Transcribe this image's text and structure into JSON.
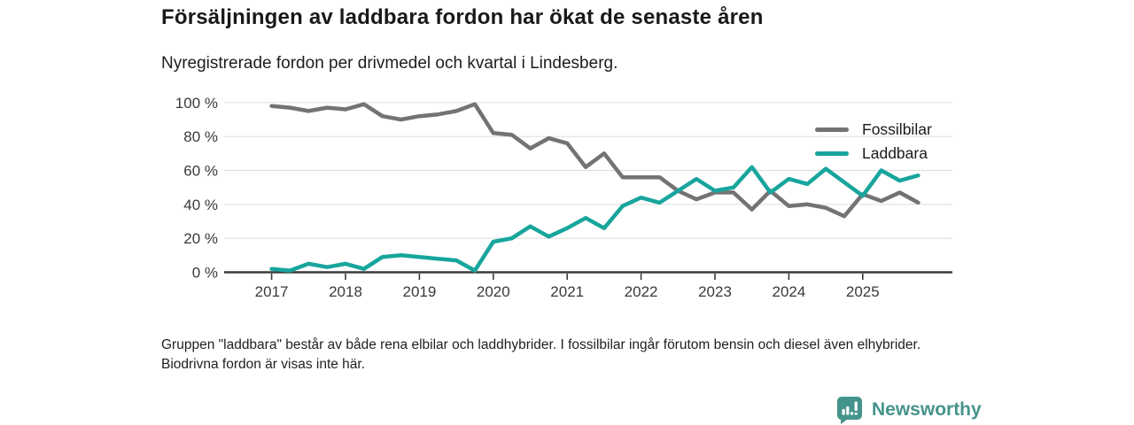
{
  "header": {
    "title": "Försäljningen av laddbara fordon har ökat de senaste åren",
    "subtitle": "Nyregistrerade fordon per drivmedel och kvartal i Lindesberg."
  },
  "chart_data": {
    "type": "line",
    "categories": [
      "2017 Q1",
      "2017 Q2",
      "2017 Q3",
      "2017 Q4",
      "2018 Q1",
      "2018 Q2",
      "2018 Q3",
      "2018 Q4",
      "2019 Q1",
      "2019 Q2",
      "2019 Q3",
      "2019 Q4",
      "2020 Q1",
      "2020 Q2",
      "2020 Q3",
      "2020 Q4",
      "2021 Q1",
      "2021 Q2",
      "2021 Q3",
      "2021 Q4",
      "2022 Q1",
      "2022 Q2",
      "2022 Q3",
      "2022 Q4",
      "2023 Q1",
      "2023 Q2",
      "2023 Q3",
      "2023 Q4",
      "2024 Q1",
      "2024 Q2",
      "2024 Q3",
      "2024 Q4",
      "2025 Q1",
      "2025 Q2",
      "2025 Q3",
      "2025 Q4"
    ],
    "series": [
      {
        "name": "Fossilbilar",
        "color": "#737373",
        "values": [
          98,
          97,
          95,
          97,
          96,
          99,
          92,
          90,
          92,
          93,
          95,
          99,
          82,
          81,
          73,
          79,
          76,
          62,
          70,
          56,
          56,
          56,
          48,
          43,
          47,
          47,
          37,
          48,
          39,
          40,
          38,
          33,
          46,
          42,
          47,
          41
        ]
      },
      {
        "name": "Laddbara",
        "color": "#18a59d",
        "values": [
          2,
          1,
          5,
          3,
          5,
          2,
          9,
          10,
          9,
          8,
          7,
          1,
          18,
          20,
          27,
          21,
          26,
          32,
          26,
          39,
          44,
          41,
          48,
          55,
          48,
          50,
          62,
          47,
          55,
          52,
          61,
          53,
          45,
          60,
          54,
          57
        ]
      }
    ],
    "year_ticks": [
      "2017",
      "2018",
      "2019",
      "2020",
      "2021",
      "2022",
      "2023",
      "2024",
      "2025"
    ],
    "yticks": [
      0,
      20,
      40,
      60,
      80,
      100
    ],
    "ytick_suffix": " %",
    "ylim": [
      0,
      100
    ],
    "grid": true,
    "legend_position": "top-right"
  },
  "footer": {
    "note": "Gruppen \"laddbara\" består av både rena elbilar och laddhybrider. I fossilbilar ingår förutom bensin och diesel även elhybrider. Biodrivna fordon är visas inte här."
  },
  "branding": {
    "logo_text": "Newsworthy",
    "logo_color": "#45948b",
    "logo_icon": "bar-chart-speech-bubble-icon"
  }
}
